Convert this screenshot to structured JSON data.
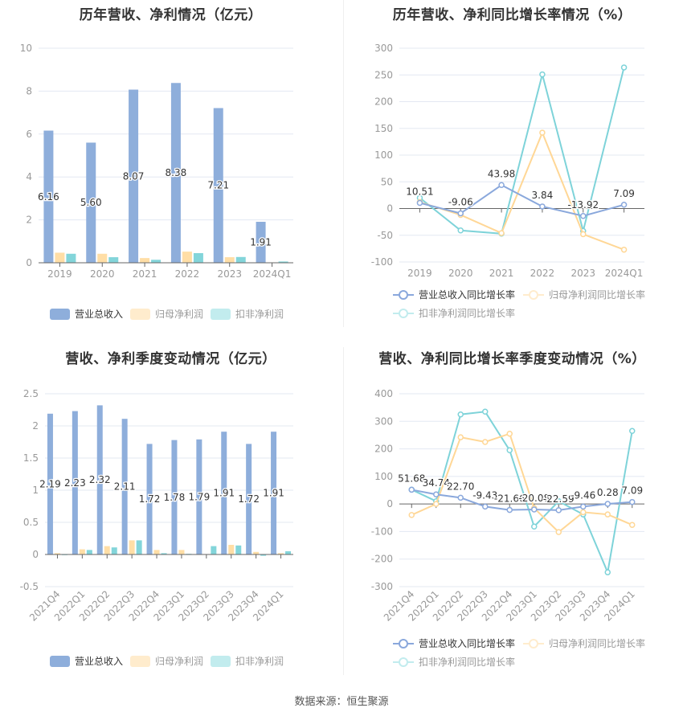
{
  "colors": {
    "revenue": "#8eaedb",
    "net_profit": "#ffdea6",
    "deducted_profit": "#83d5da",
    "revenue_line": "#8aa8dc",
    "net_profit_line": "#ffd796",
    "deducted_profit_line": "#7ed3d9",
    "legend_net_profit": "#ffeccd",
    "legend_deducted_profit": "#c2ecee",
    "grid": "#e3e8f2",
    "axis": "#666666",
    "tick_label": "#999999",
    "data_label": "#333333"
  },
  "legend": {
    "bar": [
      "营业总收入",
      "归母净利润",
      "扣非净利润"
    ],
    "line": [
      "营业总收入同比增长率",
      "归母净利润同比增长率",
      "扣非净利润同比增长率"
    ]
  },
  "source": "数据来源：恒生聚源",
  "chart_data": [
    {
      "id": "annual-amount",
      "type": "bar",
      "title": "历年营收、净利情况（亿元）",
      "categories": [
        "2019",
        "2020",
        "2021",
        "2022",
        "2023",
        "2024Q1"
      ],
      "series": [
        {
          "name": "营业总收入",
          "values": [
            6.16,
            5.6,
            8.07,
            8.38,
            7.21,
            1.91
          ],
          "labels": [
            "6.16",
            "5.60",
            "8.07",
            "8.38",
            "7.21",
            "1.91"
          ]
        },
        {
          "name": "归母净利润",
          "values": [
            0.47,
            0.42,
            0.22,
            0.52,
            0.26,
            0.02
          ]
        },
        {
          "name": "扣非净利润",
          "values": [
            0.42,
            0.26,
            0.14,
            0.45,
            0.27,
            0.06
          ]
        }
      ],
      "yticks": [
        0,
        2,
        4,
        6,
        8,
        10
      ],
      "ylim": [
        0,
        10
      ],
      "xlabel": "",
      "ylabel": "",
      "grid": true,
      "legend_position": "bottom"
    },
    {
      "id": "annual-growth",
      "type": "line",
      "title": "历年营收、净利同比增长率情况（%）",
      "categories": [
        "2019",
        "2020",
        "2021",
        "2022",
        "2023",
        "2024Q1"
      ],
      "series": [
        {
          "name": "营业总收入同比增长率",
          "values": [
            10.51,
            -9.06,
            43.98,
            3.84,
            -13.92,
            7.09
          ],
          "labels": [
            "10.51",
            "-9.06",
            "43.98",
            "3.84",
            "-13.92",
            "7.09"
          ]
        },
        {
          "name": "归母净利润同比增长率",
          "values": [
            12,
            -12,
            -46,
            142,
            -48,
            -77
          ]
        },
        {
          "name": "扣非净利润同比增长率",
          "values": [
            20,
            -41,
            -47,
            251,
            -42,
            264
          ]
        }
      ],
      "yticks": [
        -100,
        -50,
        0,
        50,
        100,
        150,
        200,
        250,
        300
      ],
      "ylim": [
        -100,
        300
      ],
      "xlabel": "",
      "ylabel": "",
      "grid": true,
      "legend_position": "bottom"
    },
    {
      "id": "quarterly-amount",
      "type": "bar",
      "title": "营收、净利季度变动情况（亿元）",
      "categories": [
        "2021Q4",
        "2022Q1",
        "2022Q2",
        "2022Q3",
        "2022Q4",
        "2023Q1",
        "2023Q2",
        "2023Q3",
        "2023Q4",
        "2024Q1"
      ],
      "series": [
        {
          "name": "营业总收入",
          "values": [
            2.19,
            2.23,
            2.32,
            2.11,
            1.72,
            1.78,
            1.79,
            1.91,
            1.72,
            1.91
          ],
          "labels": [
            "2.19",
            "2.23",
            "2.32",
            "2.11",
            "1.72",
            "1.78",
            "1.79",
            "1.91",
            "1.72",
            "1.91"
          ]
        },
        {
          "name": "归母净利润",
          "values": [
            0.02,
            0.08,
            0.13,
            0.22,
            0.07,
            0.07,
            0.0,
            0.15,
            0.04,
            0.02
          ]
        },
        {
          "name": "扣非净利润",
          "values": [
            -0.01,
            0.07,
            0.11,
            0.22,
            0.02,
            0.01,
            0.13,
            0.14,
            -0.02,
            0.05
          ]
        }
      ],
      "yticks": [
        -0.5,
        0,
        0.5,
        1,
        1.5,
        2,
        2.5
      ],
      "ylim": [
        -0.5,
        2.5
      ],
      "xlabel": "",
      "ylabel": "",
      "grid": true,
      "legend_position": "bottom"
    },
    {
      "id": "quarterly-growth",
      "type": "line",
      "title": "营收、净利同比增长率季度变动情况（%）",
      "categories": [
        "2021Q4",
        "2022Q1",
        "2022Q2",
        "2022Q3",
        "2022Q4",
        "2023Q1",
        "2023Q2",
        "2023Q3",
        "2023Q4",
        "2024Q1"
      ],
      "series": [
        {
          "name": "营业总收入同比增长率",
          "values": [
            51.68,
            34.74,
            22.7,
            -9.43,
            -21.66,
            -20.08,
            -22.59,
            -9.46,
            0.28,
            7.09
          ],
          "labels": [
            "51.68",
            "34.74",
            "22.70",
            "-9.43",
            "-21.66",
            "-20.08",
            "-22.59",
            "-9.46",
            "0.28",
            "7.09"
          ]
        },
        {
          "name": "归母净利润同比增长率",
          "values": [
            -40,
            0,
            242,
            225,
            255,
            -15,
            -102,
            -30,
            -38,
            -76
          ]
        },
        {
          "name": "扣非净利润同比增长率",
          "values": [
            52,
            10,
            325,
            335,
            195,
            -82,
            10,
            -38,
            -248,
            265
          ]
        }
      ],
      "yticks": [
        -300,
        -200,
        -100,
        0,
        100,
        200,
        300,
        400
      ],
      "ylim": [
        -300,
        400
      ],
      "xlabel": "",
      "ylabel": "",
      "grid": true,
      "legend_position": "bottom"
    }
  ]
}
